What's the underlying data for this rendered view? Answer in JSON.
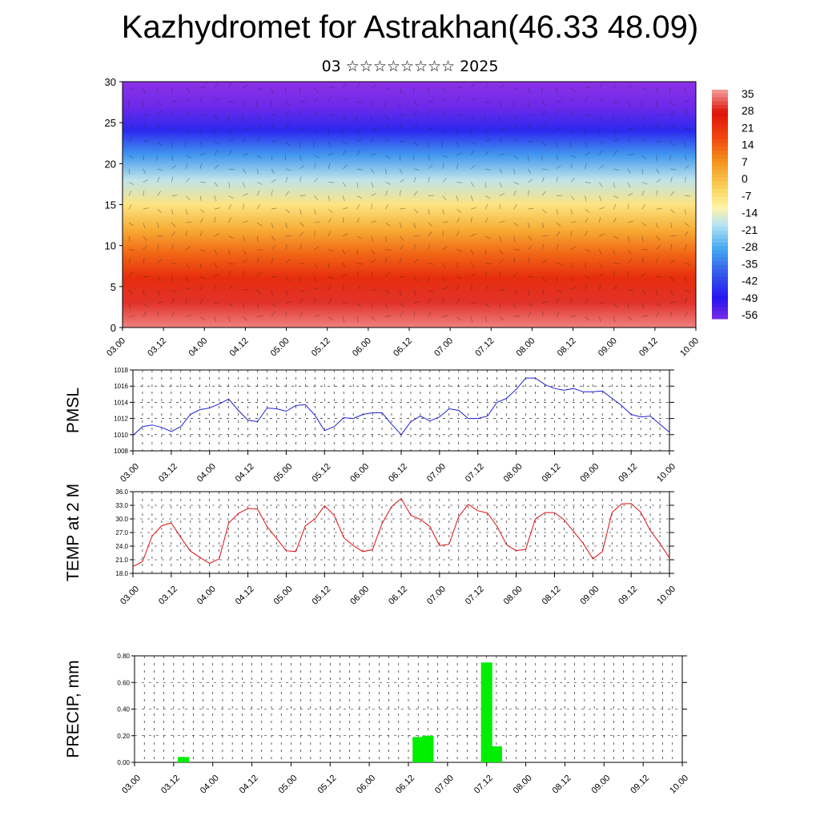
{
  "header": {
    "title": "Kazhydromet for Astrakhan(46.33 48.09)",
    "subtitle": "03 ☆☆☆☆☆☆☆☆ 2025"
  },
  "time_ticks": [
    "03.00",
    "03.12",
    "04.00",
    "04.12",
    "05.00",
    "05.12",
    "06.00",
    "06.12",
    "07.00",
    "07.12",
    "08.00",
    "08.12",
    "09.00",
    "09.12",
    "10.00"
  ],
  "colorbar": {
    "labels": [
      "35",
      "28",
      "21",
      "14",
      "7",
      "0",
      "-7",
      "-14",
      "-21",
      "-28",
      "-35",
      "-42",
      "-49",
      "-56"
    ]
  },
  "colors": {
    "pmsl_line": "#1f1fd6",
    "temp_line": "#e01010",
    "precip_bar": "#00ee00"
  },
  "chart_data": [
    {
      "type": "heatmap",
      "name": "temperature-height-section",
      "xlabel": "",
      "ylabel": "",
      "yticks": [
        "0",
        "5",
        "10",
        "15",
        "20",
        "25",
        "30"
      ],
      "ylim": [
        0,
        30
      ],
      "x_ticks": [
        "03.00",
        "03.12",
        "04.00",
        "04.12",
        "05.00",
        "05.12",
        "06.00",
        "06.12",
        "07.00",
        "07.12",
        "08.00",
        "08.12",
        "09.00",
        "09.12",
        "10.00"
      ],
      "color_range": [
        -56,
        35
      ],
      "profile_height": [
        0,
        3,
        6,
        9,
        12,
        15,
        18,
        21,
        24,
        27,
        30
      ],
      "profile_value": [
        33,
        28,
        21,
        12,
        2,
        -8,
        -18,
        -30,
        -45,
        -55,
        -58
      ],
      "overlay": "wind vectors"
    },
    {
      "type": "line",
      "ylabel": "PMSL",
      "ylim": [
        1008,
        1018
      ],
      "yticks": [
        "1008",
        "1010",
        "1012",
        "1014",
        "1016",
        "1018"
      ],
      "x_ticks": [
        "03.00",
        "03.12",
        "04.00",
        "04.12",
        "05.00",
        "05.12",
        "06.00",
        "06.12",
        "07.00",
        "07.12",
        "08.00",
        "08.12",
        "09.00",
        "09.12",
        "10.00"
      ],
      "x": [
        0,
        3,
        6,
        9,
        12,
        15,
        18,
        21,
        24,
        27,
        30,
        33,
        36,
        39,
        42,
        45,
        48,
        51,
        54,
        57,
        60,
        63,
        66,
        69,
        72,
        75,
        78,
        81,
        84,
        87,
        90,
        93,
        96,
        99,
        102,
        105,
        108,
        111,
        114,
        117,
        120,
        123,
        126,
        129,
        132,
        135,
        138,
        141,
        144,
        147,
        150,
        153,
        156,
        159,
        162,
        165,
        168
      ],
      "values": [
        1009.9,
        1011.0,
        1011.2,
        1010.9,
        1010.4,
        1011.0,
        1012.5,
        1013.1,
        1013.3,
        1013.8,
        1014.4,
        1013.0,
        1011.8,
        1011.6,
        1013.3,
        1013.2,
        1012.9,
        1013.6,
        1013.7,
        1012.4,
        1010.5,
        1011.0,
        1012.1,
        1012.0,
        1012.5,
        1012.7,
        1012.7,
        1011.3,
        1010.0,
        1011.6,
        1012.3,
        1011.7,
        1012.2,
        1013.2,
        1013.0,
        1012.0,
        1012.0,
        1012.3,
        1014.0,
        1014.5,
        1015.6,
        1017.0,
        1017.0,
        1016.2,
        1015.7,
        1015.5,
        1015.7,
        1015.3,
        1015.3,
        1015.4,
        1014.5,
        1013.6,
        1012.5,
        1012.2,
        1012.3,
        1011.3,
        1010.3
      ],
      "series": [
        {
          "name": "PMSL"
        }
      ]
    },
    {
      "type": "line",
      "ylabel": "TEMP at 2 M",
      "ylim": [
        18.0,
        36.0
      ],
      "yticks": [
        "18.0",
        "21.0",
        "24.0",
        "27.0",
        "30.0",
        "33.0",
        "36.0"
      ],
      "x_ticks": [
        "03.00",
        "03.12",
        "04.00",
        "04.12",
        "05.00",
        "05.12",
        "06.00",
        "06.12",
        "07.00",
        "07.12",
        "08.00",
        "08.12",
        "09.00",
        "09.12",
        "10.00"
      ],
      "x": [
        0,
        3,
        6,
        9,
        12,
        15,
        18,
        21,
        24,
        27,
        30,
        33,
        36,
        39,
        42,
        45,
        48,
        51,
        54,
        57,
        60,
        63,
        66,
        69,
        72,
        75,
        78,
        81,
        84,
        87,
        90,
        93,
        96,
        99,
        102,
        105,
        108,
        111,
        114,
        117,
        120,
        123,
        126,
        129,
        132,
        135,
        138,
        141,
        144,
        147,
        150,
        153,
        156,
        159,
        162,
        165,
        168
      ],
      "values": [
        19.5,
        20.6,
        26.2,
        28.5,
        29.1,
        25.9,
        22.9,
        21.5,
        20.2,
        21.2,
        29.1,
        31.2,
        32.3,
        32.2,
        28.3,
        25.7,
        23.0,
        22.8,
        28.5,
        30.0,
        32.9,
        30.8,
        25.9,
        24.1,
        22.8,
        23.2,
        29.0,
        32.7,
        34.5,
        30.8,
        29.9,
        28.3,
        24.1,
        24.4,
        30.5,
        33.2,
        31.8,
        31.3,
        28.4,
        24.3,
        23.0,
        23.3,
        30.0,
        31.4,
        31.4,
        29.8,
        27.2,
        24.6,
        21.2,
        22.8,
        31.4,
        33.3,
        33.4,
        31.5,
        27.4,
        24.6,
        21.4
      ],
      "series": [
        {
          "name": "TEMP at 2 M"
        }
      ]
    },
    {
      "type": "bar",
      "ylabel": "PRECIP, mm",
      "ylim": [
        0.0,
        0.8
      ],
      "yticks": [
        "0.00",
        "0.20",
        "0.40",
        "0.60",
        "0.80"
      ],
      "x_ticks": [
        "03.00",
        "03.12",
        "04.00",
        "04.12",
        "05.00",
        "05.12",
        "06.00",
        "06.12",
        "07.00",
        "07.12",
        "08.00",
        "08.12",
        "09.00",
        "09.12",
        "10.00"
      ],
      "bars": [
        {
          "t": 15,
          "value": 0.04
        },
        {
          "t": 87,
          "value": 0.19
        },
        {
          "t": 90,
          "value": 0.2
        },
        {
          "t": 108,
          "value": 0.75
        },
        {
          "t": 111,
          "value": 0.12
        }
      ]
    }
  ]
}
